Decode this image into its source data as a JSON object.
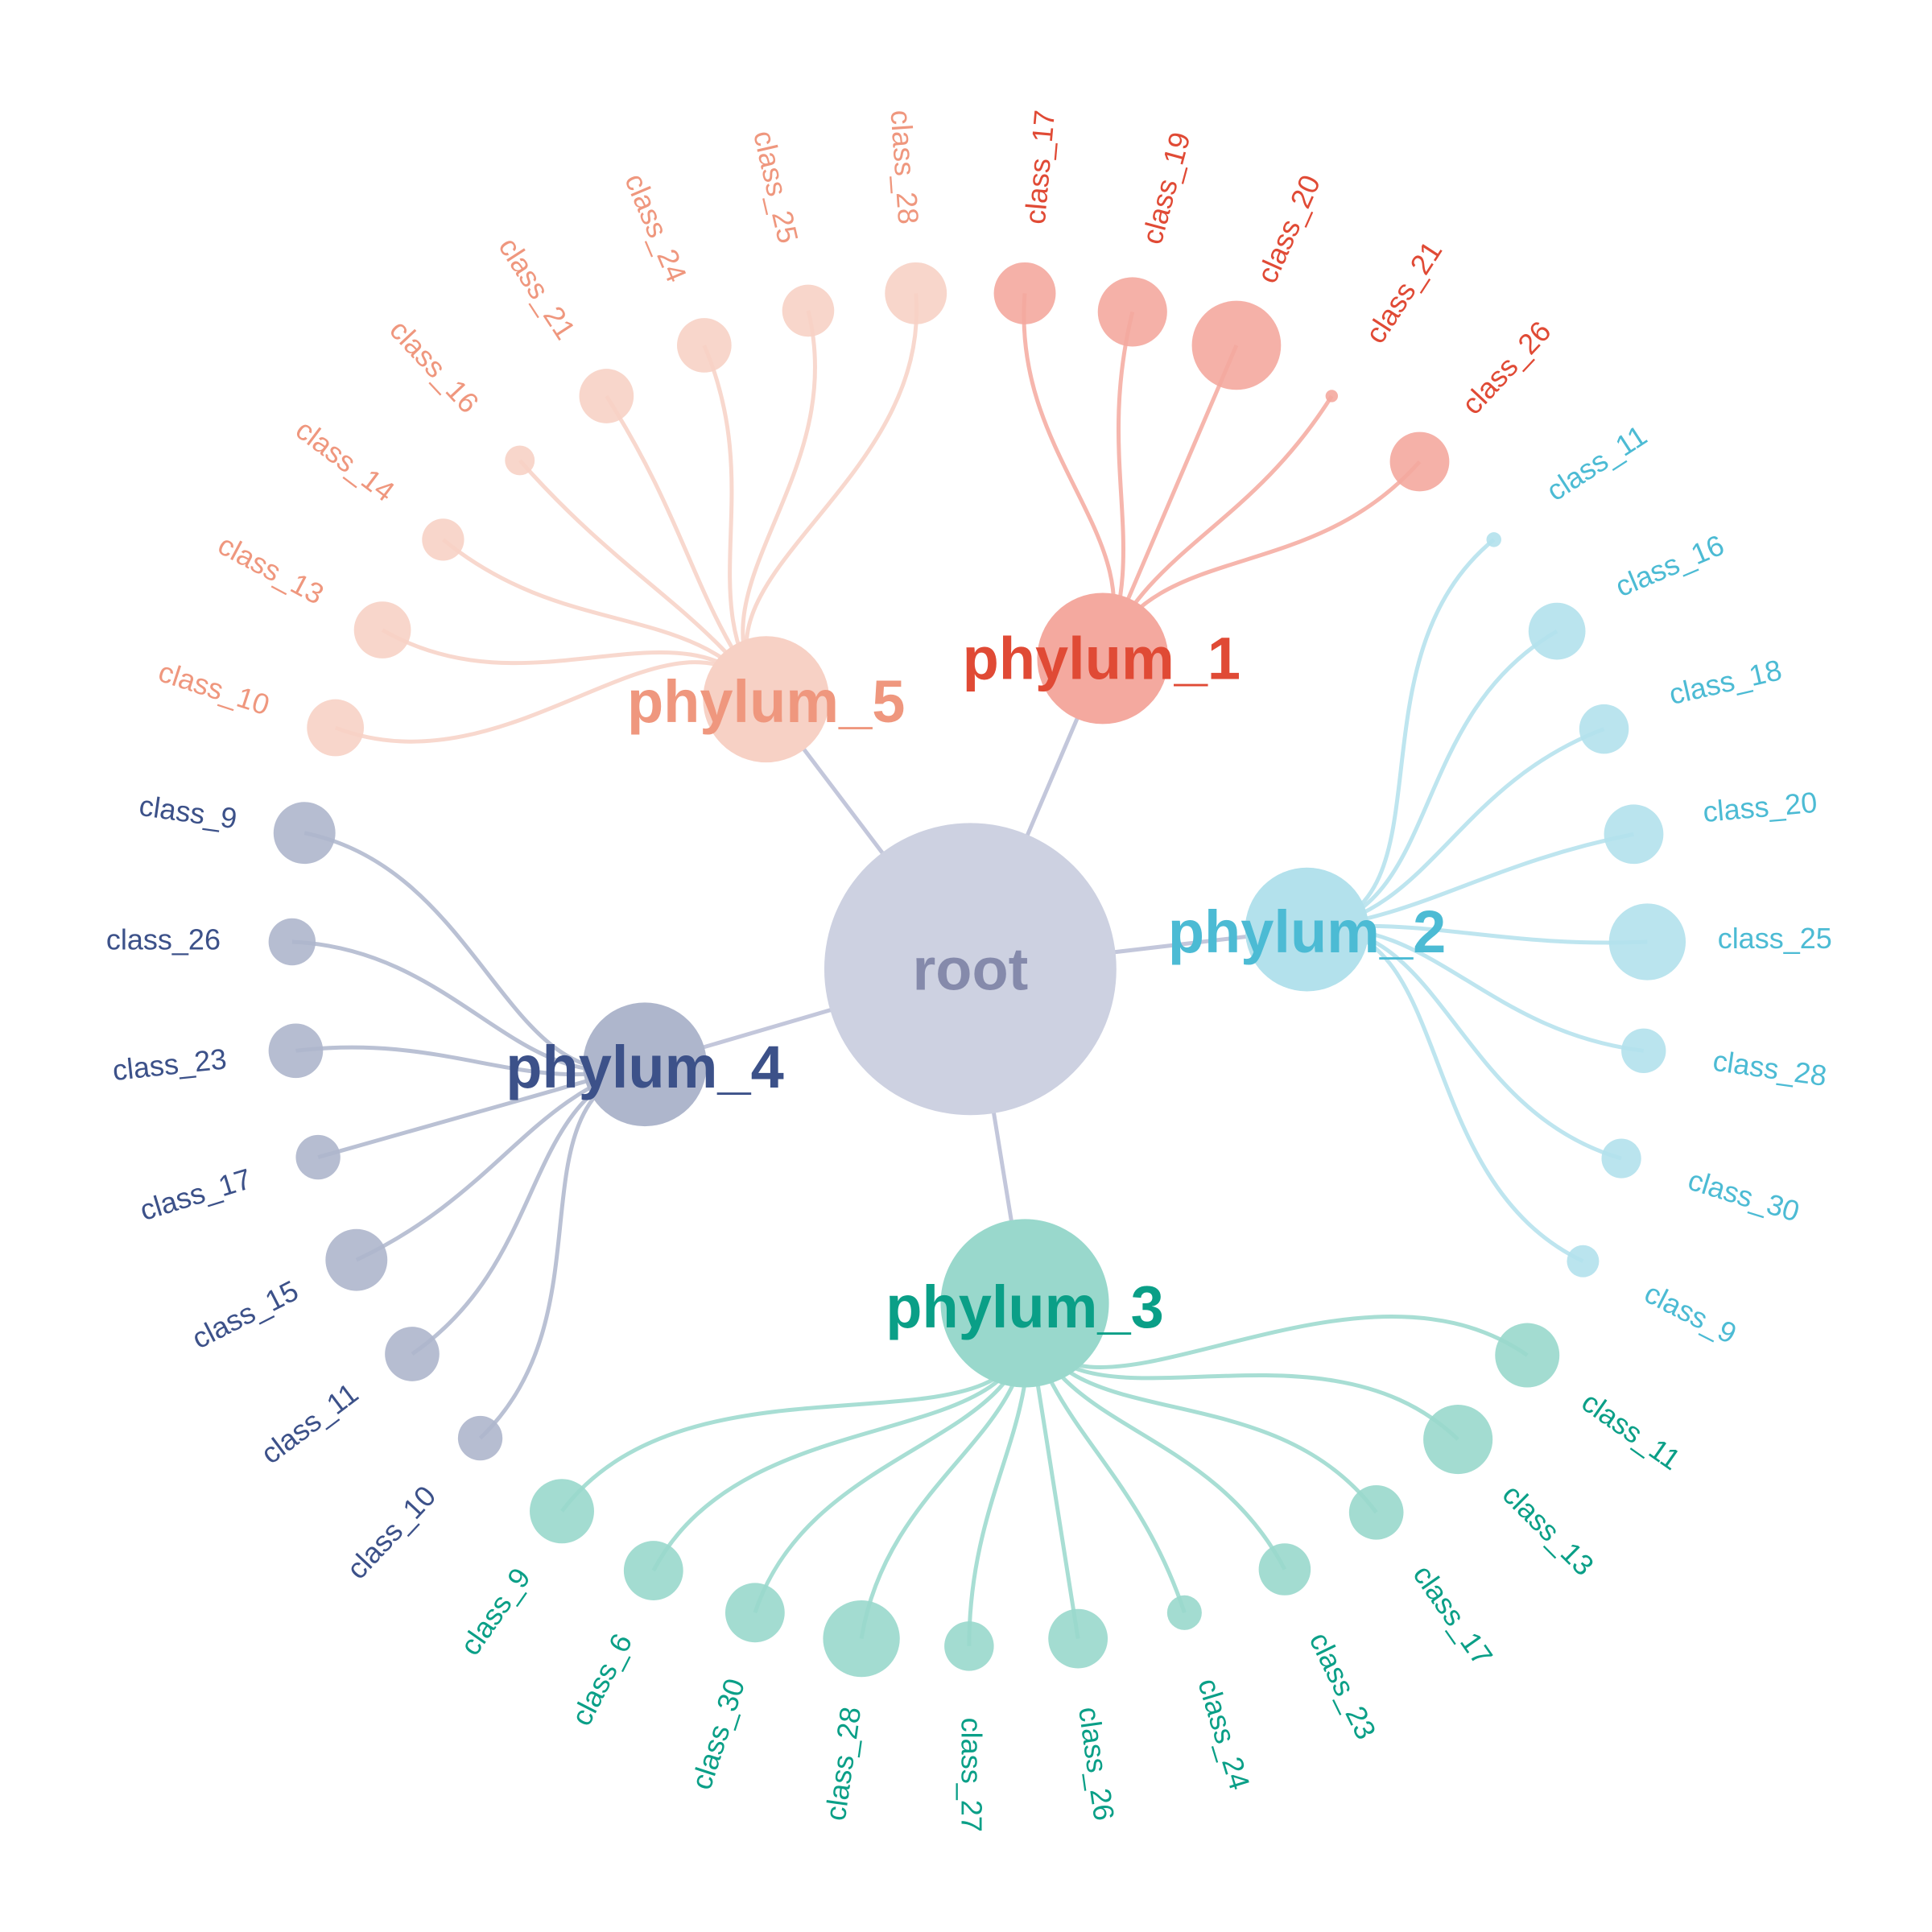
{
  "root": {
    "label": "root",
    "color": "#cdd1e1",
    "text_color": "#858aab",
    "link_color": "#c3c7db"
  },
  "phyla": [
    {
      "label": "phylum_1",
      "color": "#f4a99f",
      "text_color": "#e04a35",
      "leaves": [
        {
          "label": "class_17"
        },
        {
          "label": "class_19"
        },
        {
          "label": "class_20"
        },
        {
          "label": "class_21"
        },
        {
          "label": "class_26"
        }
      ]
    },
    {
      "label": "phylum_2",
      "color": "#b3e1ec",
      "text_color": "#4cbbd4",
      "leaves": [
        {
          "label": "class_11"
        },
        {
          "label": "class_16"
        },
        {
          "label": "class_18"
        },
        {
          "label": "class_20"
        },
        {
          "label": "class_25"
        },
        {
          "label": "class_28"
        },
        {
          "label": "class_30"
        },
        {
          "label": "class_9"
        }
      ]
    },
    {
      "label": "phylum_3",
      "color": "#99d8cc",
      "text_color": "#0a9f87",
      "leaves": [
        {
          "label": "class_11"
        },
        {
          "label": "class_13"
        },
        {
          "label": "class_17"
        },
        {
          "label": "class_23"
        },
        {
          "label": "class_24"
        },
        {
          "label": "class_26"
        },
        {
          "label": "class_27"
        },
        {
          "label": "class_28"
        },
        {
          "label": "class_30"
        },
        {
          "label": "class_6"
        },
        {
          "label": "class_9"
        }
      ]
    },
    {
      "label": "phylum_4",
      "color": "#aeb6cc",
      "text_color": "#3c5189",
      "leaves": [
        {
          "label": "class_9"
        },
        {
          "label": "class_26"
        },
        {
          "label": "class_23"
        },
        {
          "label": "class_17"
        },
        {
          "label": "class_15"
        },
        {
          "label": "class_11"
        },
        {
          "label": "class_10"
        }
      ]
    },
    {
      "label": "phylum_5",
      "color": "#f7d1c5",
      "text_color": "#ef977e",
      "leaves": [
        {
          "label": "class_10"
        },
        {
          "label": "class_13"
        },
        {
          "label": "class_14"
        },
        {
          "label": "class_16"
        },
        {
          "label": "class_21"
        },
        {
          "label": "class_24"
        },
        {
          "label": "class_25"
        },
        {
          "label": "class_28"
        }
      ]
    }
  ]
}
